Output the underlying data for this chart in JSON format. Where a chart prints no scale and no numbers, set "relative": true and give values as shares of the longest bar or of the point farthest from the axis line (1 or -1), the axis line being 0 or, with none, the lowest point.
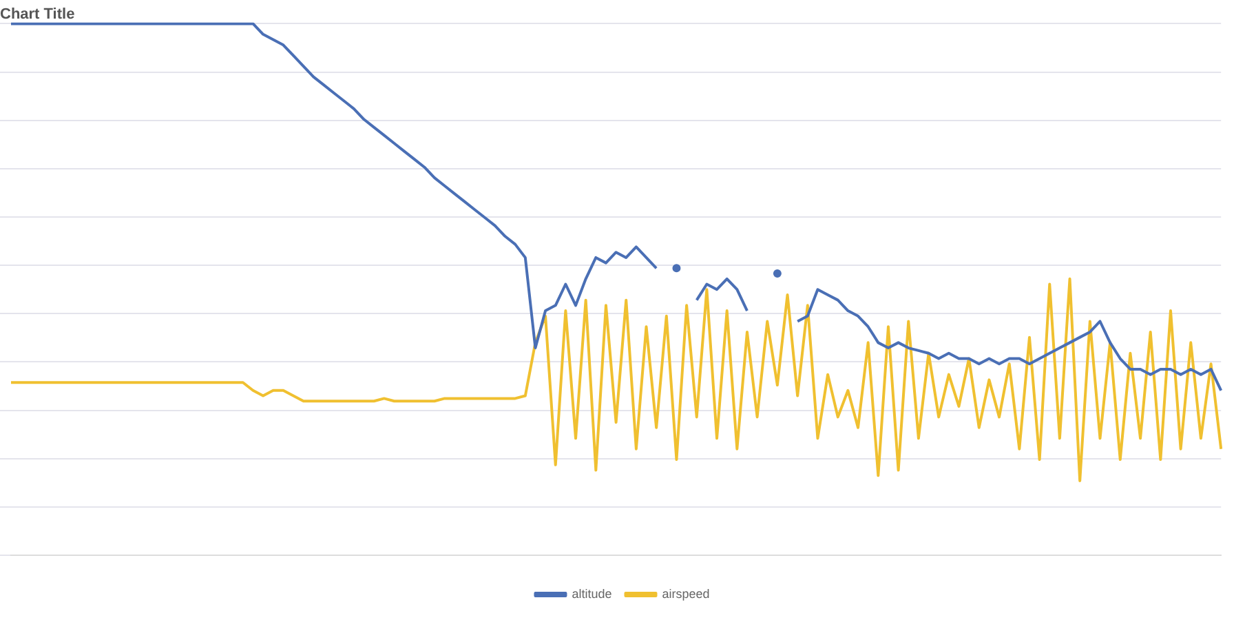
{
  "chart_data": {
    "type": "line",
    "title": "Chart Title",
    "relative": true,
    "grid": "y",
    "legend": "bottom",
    "marker": "none",
    "line_style": "solid",
    "categories": [
      null,
      null,
      null,
      null,
      null,
      null,
      null,
      null,
      null,
      null,
      null,
      null,
      null,
      null,
      null,
      null,
      null,
      null,
      null,
      null,
      null,
      null,
      null,
      null,
      null,
      null,
      null,
      null,
      null,
      null,
      null,
      null,
      null,
      null,
      null,
      null,
      null,
      null,
      null,
      null,
      null,
      null,
      null,
      null,
      null,
      null,
      null,
      null,
      null,
      null,
      null,
      null,
      null,
      null,
      null,
      null,
      null,
      null,
      null,
      null,
      null,
      null,
      null,
      null,
      null,
      null,
      null,
      null,
      null,
      null,
      null,
      null,
      null,
      null,
      null,
      null,
      null,
      null,
      null,
      null,
      null,
      null,
      null,
      null,
      null,
      null,
      null,
      null,
      null,
      null,
      null,
      null,
      null,
      null,
      null,
      null,
      null,
      null,
      null,
      null,
      null,
      null,
      null,
      null,
      null,
      null,
      null,
      null,
      null,
      null,
      null,
      null,
      null,
      null,
      null,
      null,
      null,
      null,
      null,
      null,
      null
    ],
    "series": [
      {
        "name": "altitude",
        "color": "#4a6fb5",
        "values": [
          1,
          1,
          1,
          1,
          1,
          1,
          1,
          1,
          1,
          1,
          1,
          1,
          1,
          1,
          1,
          1,
          1,
          1,
          1,
          1,
          1,
          1,
          1,
          1,
          1,
          0.98,
          0.97,
          0.96,
          0.94,
          0.92,
          0.9,
          0.885,
          0.87,
          0.855,
          0.84,
          0.82,
          0.805,
          0.79,
          0.775,
          0.76,
          0.745,
          0.73,
          0.71,
          0.695,
          0.68,
          0.665,
          0.65,
          0.635,
          0.62,
          0.6,
          0.585,
          0.56,
          0.39,
          0.46,
          0.47,
          0.51,
          0.47,
          0.52,
          0.56,
          0.55,
          0.57,
          0.56,
          0.58,
          0.56,
          0.54,
          null,
          0.54,
          null,
          0.48,
          0.51,
          0.5,
          0.52,
          0.5,
          0.46,
          null,
          null,
          0.53,
          null,
          0.44,
          0.45,
          0.5,
          0.49,
          0.48,
          0.46,
          0.45,
          0.43,
          0.4,
          0.39,
          0.4,
          0.39,
          0.385,
          0.38,
          0.37,
          0.38,
          0.37,
          0.37,
          0.36,
          0.37,
          0.36,
          0.37,
          0.37,
          0.36,
          0.37,
          0.38,
          0.39,
          0.4,
          0.41,
          0.42,
          0.44,
          0.4,
          0.37,
          0.35,
          0.35,
          0.34,
          0.35,
          0.35,
          0.34,
          0.35,
          0.34,
          0.35,
          0.31
        ]
      },
      {
        "name": "airspeed",
        "color": "#f0c030",
        "values": [
          0.325,
          0.325,
          0.325,
          0.325,
          0.325,
          0.325,
          0.325,
          0.325,
          0.325,
          0.325,
          0.325,
          0.325,
          0.325,
          0.325,
          0.325,
          0.325,
          0.325,
          0.325,
          0.325,
          0.325,
          0.325,
          0.325,
          0.325,
          0.325,
          0.31,
          0.3,
          0.31,
          0.31,
          0.3,
          0.29,
          0.29,
          0.29,
          0.29,
          0.29,
          0.29,
          0.29,
          0.29,
          0.295,
          0.29,
          0.29,
          0.29,
          0.29,
          0.29,
          0.295,
          0.295,
          0.295,
          0.295,
          0.295,
          0.295,
          0.295,
          0.295,
          0.3,
          0.4,
          0.45,
          0.17,
          0.46,
          0.22,
          0.48,
          0.16,
          0.47,
          0.25,
          0.48,
          0.2,
          0.43,
          0.24,
          0.45,
          0.18,
          0.47,
          0.26,
          0.5,
          0.22,
          0.46,
          0.2,
          0.42,
          0.26,
          0.44,
          0.32,
          0.49,
          0.3,
          0.47,
          0.22,
          0.34,
          0.26,
          0.31,
          0.24,
          0.4,
          0.15,
          0.43,
          0.16,
          0.44,
          0.22,
          0.38,
          0.26,
          0.34,
          0.28,
          0.37,
          0.24,
          0.33,
          0.26,
          0.36,
          0.2,
          0.41,
          0.18,
          0.51,
          0.22,
          0.52,
          0.14,
          0.44,
          0.22,
          0.4,
          0.18,
          0.38,
          0.22,
          0.42,
          0.18,
          0.46,
          0.2,
          0.4,
          0.22,
          0.36,
          0.2
        ]
      }
    ]
  }
}
